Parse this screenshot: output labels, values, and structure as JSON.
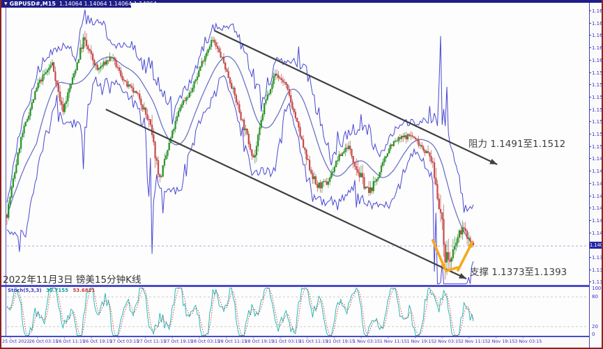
{
  "title_bar": {
    "symbol_period": "GBPUSD#,M15",
    "ohlc": "1.14064 1.14064 1.14064 1.14064"
  },
  "annotations": {
    "resistance": "阻力 1.1491至1.1512",
    "support": "支撑 1.1373至1.1393",
    "caption": "2022年11月3日 镑美15分钟K线"
  },
  "indicator": {
    "name": "Stoch(5,3,3)",
    "k_value": "30.7155",
    "d_value": "53.6821"
  },
  "price_axis": {
    "labels": [
      "1.16540",
      "1.16410",
      "1.16280",
      "1.16150",
      "1.16020",
      "1.15890",
      "1.15760",
      "1.15630",
      "1.15500",
      "1.15370",
      "1.15240",
      "1.15110",
      "1.14980",
      "1.14850",
      "1.14720",
      "1.14590",
      "1.14460",
      "1.14330",
      "1.14200",
      "1.13940",
      "1.13810",
      "1.13680"
    ],
    "current_price": "1.14064"
  },
  "stoch_axis": {
    "labels": [
      "100",
      "80",
      "20",
      "0"
    ]
  },
  "time_axis": {
    "labels": [
      "25 Oct 2022",
      "26 Oct 03:15",
      "26 Oct 11:15",
      "26 Oct 19:15",
      "27 Oct 03:15",
      "27 Oct 11:15",
      "27 Oct 19:15",
      "28 Oct 03:15",
      "28 Oct 11:15",
      "28 Oct 19:15",
      "31 Oct 03:15",
      "31 Oct 11:15",
      "31 Oct 19:15",
      "1 Nov 03:15",
      "1 Nov 11:15",
      "1 Nov 19:15",
      "2 Nov 03:15",
      "2 Nov 11:15",
      "2 Nov 19:15",
      "3 Nov 03:15"
    ]
  },
  "colors": {
    "frame": "#8b2222",
    "header": "#1d1d87",
    "axis_text": "#3434c8",
    "candle_up": "#2fb52f",
    "candle_up_edge": "#1d7f1d",
    "candle_down": "#e86868",
    "candle_down_edge": "#b23434",
    "band": "#4747d4",
    "ma": "#6a74c4",
    "stoch_k": "#18b2b2",
    "stoch_d": "#c43c3c",
    "trendline": "#3f3f3f",
    "highlight_arrow": "#f5a81f",
    "level_dash": "#c6c6c6",
    "price_line": "#8a8ad8"
  },
  "chart_data": {
    "type": "candlestick",
    "symbol": "GBPUSD#",
    "timeframe": "M15",
    "date_label": "2022-11-03",
    "y_range": [
      1.1368,
      1.1654
    ],
    "price_step": 0.0013,
    "current_price": 1.14064,
    "resistance_zone": [
      1.1491,
      1.1512
    ],
    "support_zone": [
      1.1373,
      1.1393
    ],
    "anchors": {
      "t": [
        0,
        0.03,
        0.067,
        0.097,
        0.119,
        0.142,
        0.164,
        0.194,
        0.224,
        0.254,
        0.284,
        0.306,
        0.328,
        0.351,
        0.373,
        0.396,
        0.418,
        0.44,
        0.463,
        0.485,
        0.507,
        0.53,
        0.552,
        0.575,
        0.597,
        0.619,
        0.642,
        0.664,
        0.687,
        0.709,
        0.731,
        0.754,
        0.776,
        0.799,
        0.821,
        0.843,
        0.866,
        0.888,
        0.91,
        0.928,
        0.94,
        0.952,
        0.964,
        0.976,
        0.988,
        1
      ],
      "close": [
        1.14403,
        1.15197,
        1.15775,
        1.1599,
        1.15486,
        1.15847,
        1.1624,
        1.15919,
        1.1606,
        1.15775,
        1.1563,
        1.15341,
        1.14764,
        1.15197,
        1.15558,
        1.15702,
        1.16,
        1.16245,
        1.1602,
        1.15702,
        1.15341,
        1.1498,
        1.15558,
        1.1588,
        1.15775,
        1.15414,
        1.1498,
        1.14692,
        1.14728,
        1.1498,
        1.15125,
        1.14836,
        1.14619,
        1.14836,
        1.15125,
        1.15197,
        1.15233,
        1.15125,
        1.1498,
        1.14475,
        1.1397,
        1.13897,
        1.14114,
        1.14259,
        1.1416,
        1.14064
      ],
      "vol": [
        2,
        1,
        1,
        1,
        2,
        1,
        3,
        1,
        1,
        1,
        1,
        4,
        2,
        1,
        1,
        1,
        1,
        1,
        1,
        1,
        2,
        2,
        1,
        1,
        1,
        1,
        2,
        2,
        1,
        1,
        1,
        3,
        2,
        1,
        1,
        1,
        1,
        1,
        2,
        5,
        6,
        4,
        3,
        2,
        2,
        2
      ]
    },
    "channel": {
      "upper": {
        "from": [
          0.445,
          1.16334
        ],
        "to": [
          1.051,
          1.14924
        ]
      },
      "lower": {
        "from": [
          0.212,
          1.15504
        ],
        "to": [
          0.985,
          1.13719
        ]
      }
    },
    "bounce_arrows": [
      {
        "from": [
          0.913,
          1.14123
        ],
        "to": [
          0.94,
          1.13815
        ],
        "head": true
      },
      {
        "from": [
          0.942,
          1.138
        ],
        "to": [
          0.966,
          1.13837
        ],
        "head": false
      },
      {
        "from": [
          0.967,
          1.13807
        ],
        "to": [
          0.998,
          1.14108
        ],
        "head": true
      }
    ],
    "stochastic": {
      "settings": "Stoch(5,3,3)",
      "k_last": 30.7155,
      "d_last": 53.6821,
      "levels": [
        20,
        80
      ],
      "range": [
        0,
        100
      ]
    }
  }
}
